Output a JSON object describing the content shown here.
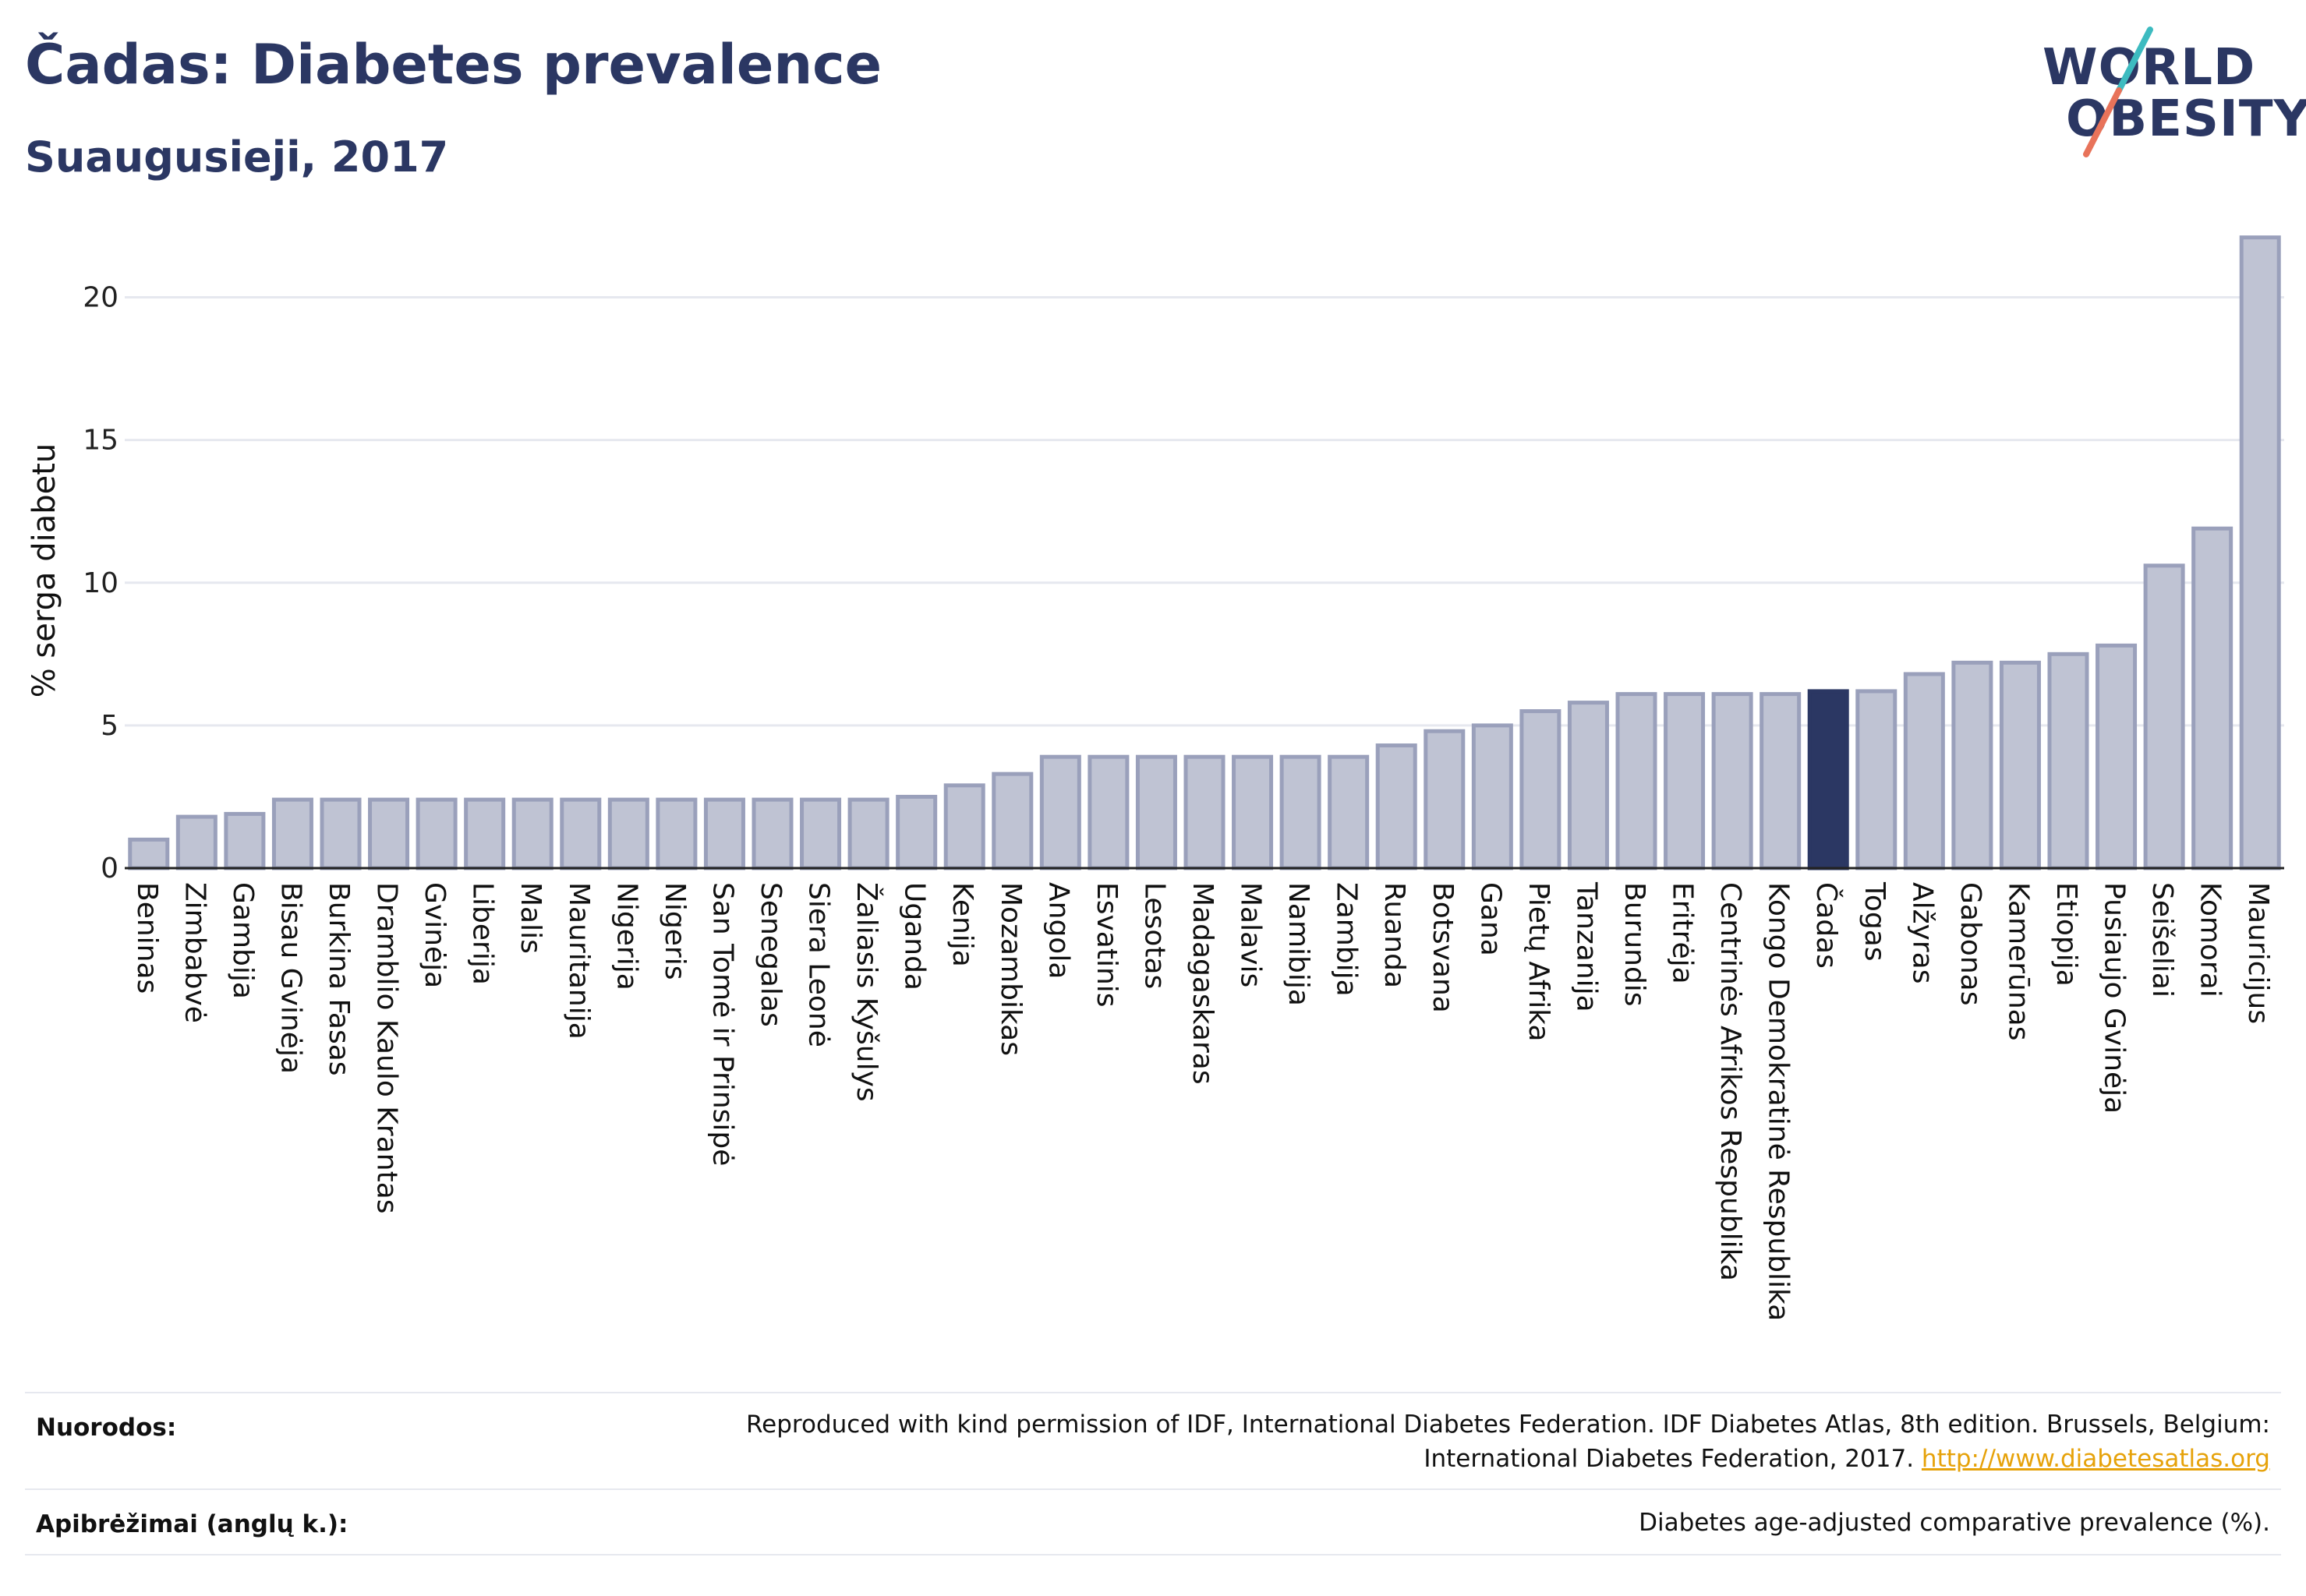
{
  "header": {
    "title": "Čadas: Diabetes prevalence",
    "subtitle": "Suaugusieji, 2017"
  },
  "logo": {
    "line1": "WORLD",
    "line2": "OBESITY",
    "accent": "#e8735a",
    "teal": "#3dbbc0"
  },
  "colors": {
    "bar": "#bfc3d3",
    "bar_stroke": "#9aa0bb",
    "highlight": "#2b3763",
    "grid": "#e6e8ef"
  },
  "chart_data": {
    "type": "bar",
    "ylabel": "% serga diabetu",
    "ylim": [
      0,
      22.5
    ],
    "yticks": [
      0,
      5,
      10,
      15,
      20
    ],
    "highlight": "Čadas",
    "grid": true,
    "categories": [
      "Beninas",
      "Zimbabvė",
      "Gambija",
      "Bisau Gvinėja",
      "Burkina Fasas",
      "Dramblio Kaulo Krantas",
      "Gvinėja",
      "Liberija",
      "Malis",
      "Mauritanija",
      "Nigerija",
      "Nigeris",
      "San Tomė ir Prinsipė",
      "Senegalas",
      "Siera Leonė",
      "Žaliasis Kyšulys",
      "Uganda",
      "Kenija",
      "Mozambikas",
      "Angola",
      "Esvatinis",
      "Lesotas",
      "Madagaskaras",
      "Malavis",
      "Namibija",
      "Zambija",
      "Ruanda",
      "Botsvana",
      "Gana",
      "Pietų Afrika",
      "Tanzanija",
      "Burundis",
      "Eritrėja",
      "Centrinės Afrikos Respublika",
      "Kongo Demokratinė Respublika",
      "Čadas",
      "Togas",
      "Alžyras",
      "Gabonas",
      "Kamerūnas",
      "Etiopija",
      "Pusiaujo Gvinėja",
      "Seišeliai",
      "Komorai",
      "Mauricijus"
    ],
    "values": [
      1.0,
      1.8,
      1.9,
      2.4,
      2.4,
      2.4,
      2.4,
      2.4,
      2.4,
      2.4,
      2.4,
      2.4,
      2.4,
      2.4,
      2.4,
      2.4,
      2.5,
      2.9,
      3.3,
      3.9,
      3.9,
      3.9,
      3.9,
      3.9,
      3.9,
      3.9,
      4.3,
      4.8,
      5.0,
      5.5,
      5.8,
      6.1,
      6.1,
      6.1,
      6.1,
      6.2,
      6.2,
      6.8,
      7.2,
      7.2,
      7.5,
      7.8,
      10.6,
      11.9,
      22.1
    ]
  },
  "footer": {
    "refs_label": "Nuorodos:",
    "refs_line1": "Reproduced with kind permission of IDF, International Diabetes Federation. IDF Diabetes Atlas, 8th edition. Brussels, Belgium:",
    "refs_line2": "International Diabetes Federation, 2017.",
    "refs_link": "http://www.diabetesatlas.org",
    "defs_label": "Apibrėžimai (anglų k.):",
    "defs_text": "Diabetes age-adjusted comparative prevalence (%)."
  }
}
